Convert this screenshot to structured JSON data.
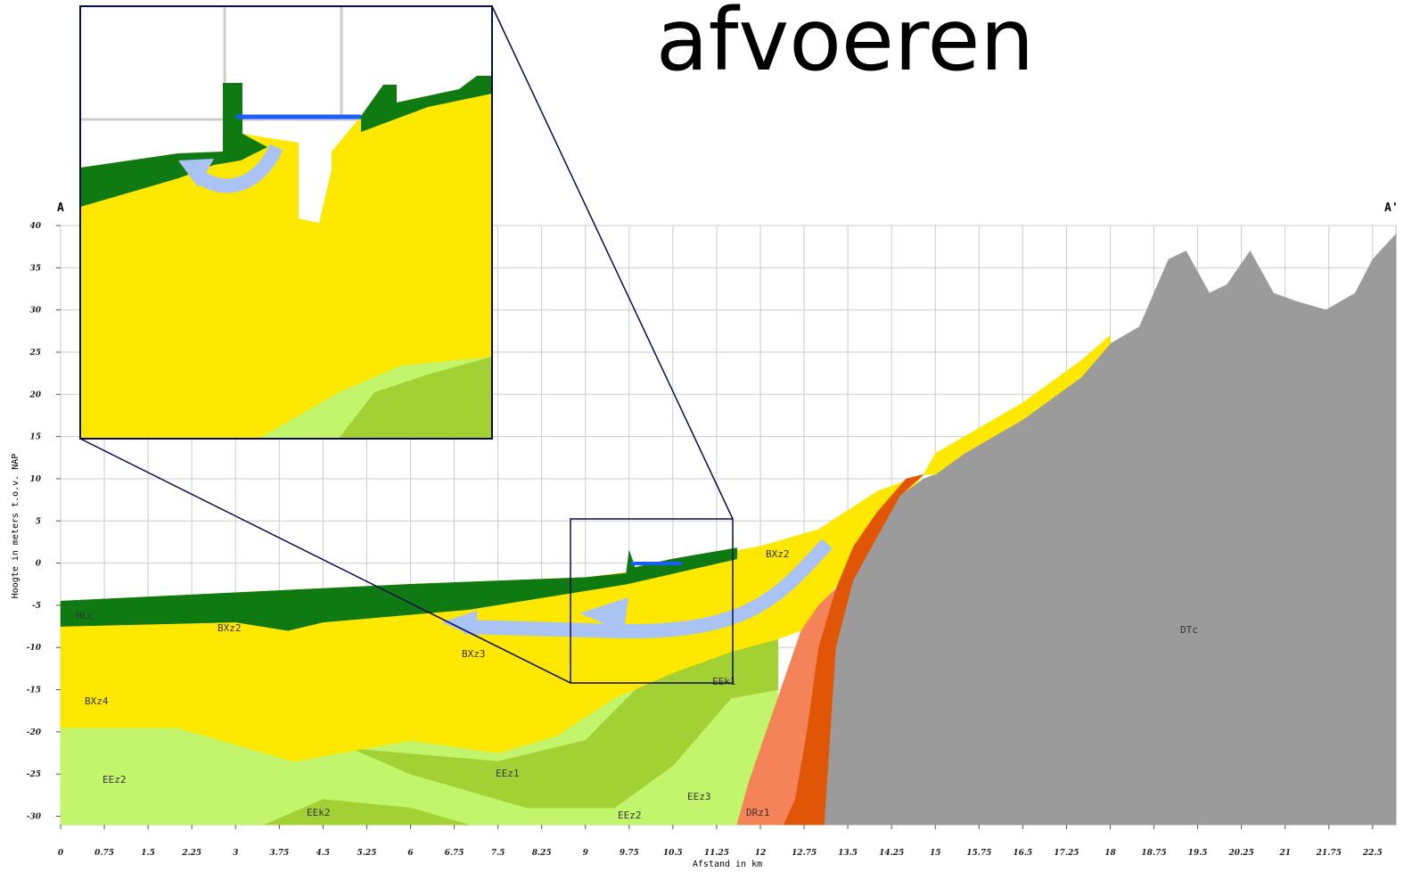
{
  "chart_data": {
    "type": "cross-section",
    "title": "afvoeren",
    "start_label": "A",
    "end_label": "A'",
    "x_label": "Afstand in km",
    "y_label": "Hoogte in meters t.o.v. NAP",
    "xlim": [
      0,
      22.9
    ],
    "ylim": [
      -31,
      40
    ],
    "xticks": [
      0,
      0.75,
      1.5,
      2.25,
      3,
      3.75,
      4.5,
      5.25,
      6,
      6.75,
      7.5,
      8.25,
      9,
      9.75,
      10.5,
      11.25,
      12,
      12.75,
      13.5,
      14.25,
      15,
      15.75,
      16.5,
      17.25,
      18,
      18.75,
      19.5,
      20.25,
      21,
      21.75,
      22.5
    ],
    "yticks": [
      -30,
      -25,
      -20,
      -15,
      -10,
      -5,
      0,
      5,
      10,
      15,
      20,
      25,
      30,
      35,
      40
    ],
    "grid": true,
    "layers": [
      {
        "color": "#c2f56b",
        "x": [
          0,
          2,
          4,
          6,
          7.5,
          8.5,
          9.5,
          10.5,
          11.5,
          12.3,
          12.3,
          0
        ],
        "y": [
          -19.5,
          -19.5,
          -23.5,
          -21,
          -22.5,
          -20.5,
          -16,
          -13,
          -10.5,
          -9,
          -31,
          -31
        ]
      },
      {
        "color": "#a3d133",
        "x": [
          5,
          7.5,
          9,
          10,
          11,
          12.3,
          12.3,
          11.5,
          10.5,
          9.5,
          8,
          6
        ],
        "y": [
          -22,
          -23.5,
          -21,
          -14,
          -11,
          -9,
          -15,
          -16,
          -24,
          -29,
          -29,
          -25
        ]
      },
      {
        "color": "#a3d133",
        "x": [
          3.5,
          4.5,
          6,
          7
        ],
        "y": [
          -31,
          -28,
          -29,
          -31
        ]
      },
      {
        "color": "#ffe800",
        "x": [
          0,
          3,
          6,
          9,
          9.8,
          11.6,
          12,
          13,
          14,
          14.8,
          12.7,
          12.3,
          11.5,
          10.5,
          9.5,
          8.5,
          7.5,
          6,
          4,
          2,
          0
        ],
        "y": [
          -4.5,
          -3.5,
          -2.5,
          -1.7,
          -1,
          1.5,
          2,
          4,
          8.5,
          10.5,
          -8,
          -9,
          -10.5,
          -13,
          -16,
          -20.5,
          -22.5,
          -21,
          -23.5,
          -19.5,
          -19.5
        ]
      },
      {
        "color": "#0f7a12",
        "x": [
          0,
          3,
          6,
          9,
          9.7,
          9.75,
          9.85,
          10.5,
          11.6,
          11.6,
          9.7,
          7,
          4.5,
          3.9,
          3,
          0
        ],
        "y": [
          -4.5,
          -3.5,
          -2.5,
          -1.7,
          -1.2,
          1.5,
          -0.5,
          0.5,
          1.8,
          0.5,
          -2.5,
          -5.5,
          -7,
          -8,
          -7,
          -7.5
        ]
      },
      {
        "color": "#f5835a",
        "x": [
          11.6,
          12.4,
          12.6,
          12.8,
          13.0,
          13.3,
          13.0,
          12.7,
          12.4,
          12.1,
          11.8
        ],
        "y": [
          -31,
          -31,
          -28,
          -20,
          -10,
          -3,
          -5,
          -8,
          -14,
          -20,
          -26
        ]
      },
      {
        "color": "#e05606",
        "x": [
          12.4,
          13.1,
          13.3,
          13.6,
          14,
          14.4,
          14.8,
          14.5,
          14,
          13.6,
          13.3,
          13.0,
          12.8,
          12.6
        ],
        "y": [
          -31,
          -31,
          -10,
          -2,
          3,
          8,
          10.5,
          10,
          6,
          2,
          -3,
          -10,
          -20,
          -28
        ]
      },
      {
        "color": "#9b9b9b",
        "x": [
          13.1,
          13.3,
          13.6,
          14,
          14.4,
          14.8,
          15,
          15.5,
          16.5,
          17.5,
          18,
          18.5,
          19,
          19.3,
          19.7,
          20,
          20.4,
          20.8,
          21.2,
          21.7,
          22.2,
          22.5,
          22.9,
          22.9
        ],
        "y": [
          -31,
          -10,
          -2,
          3,
          8,
          10,
          10.5,
          13,
          17,
          22,
          26,
          28,
          36,
          37,
          32,
          33,
          37,
          32,
          31,
          30,
          32,
          36,
          39,
          -31
        ]
      },
      {
        "color": "#ffe800",
        "x": [
          14.8,
          15,
          15.5,
          16.5,
          17.5,
          18,
          18,
          17.5,
          16.5,
          15.5,
          15
        ],
        "y": [
          10.5,
          13,
          15,
          19,
          24,
          27,
          26,
          22,
          17,
          13,
          10.5
        ]
      }
    ],
    "layer_labels": [
      "HLc",
      "BXz2",
      "BXz3",
      "BXz4",
      "EEz2",
      "EEk2",
      "EEz1",
      "EEz2",
      "EEz3",
      "DRz1",
      "EEk1",
      "BXz2",
      "DTc"
    ]
  }
}
